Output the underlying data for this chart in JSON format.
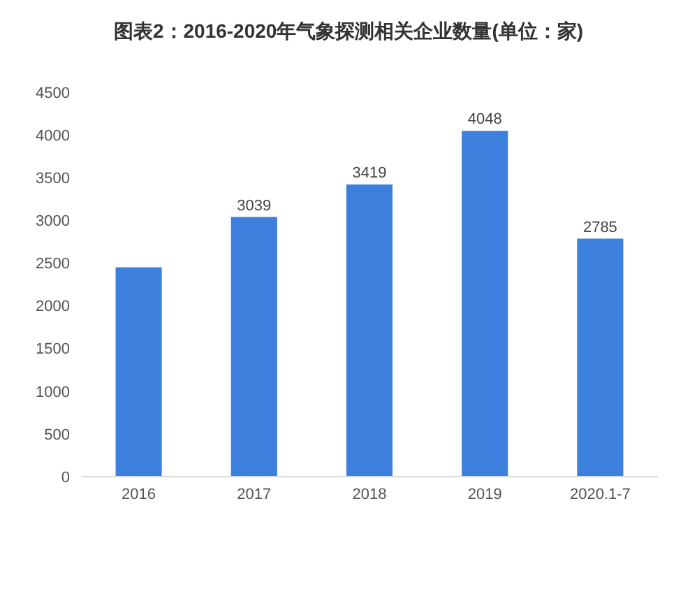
{
  "chart_data": {
    "type": "bar",
    "title": "图表2：2016-2020年气象探测相关企业数量(单位：家)",
    "categories": [
      "2016",
      "2017",
      "2018",
      "2019",
      "2020.1-7"
    ],
    "values": [
      2450,
      3039,
      3419,
      4048,
      2785
    ],
    "value_labels": [
      null,
      "3039",
      "3419",
      "4048",
      "2785"
    ],
    "color": "#3c7fdc",
    "ylim": [
      0,
      4500
    ],
    "yticks": [
      0,
      500,
      1000,
      1500,
      2000,
      2500,
      3000,
      3500,
      4000,
      4500
    ],
    "grid": false,
    "legend": false
  }
}
